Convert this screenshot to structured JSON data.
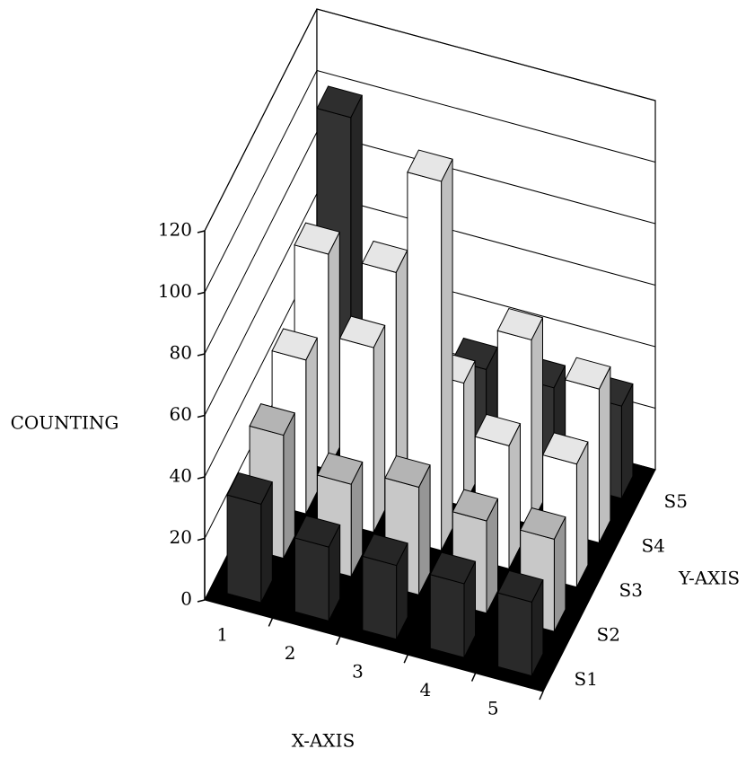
{
  "chart_data": {
    "type": "bar3d",
    "xlabel": "X-AXIS",
    "ylabel": "Y-AXIS",
    "zlabel": "COUNTING",
    "categories": [
      "1",
      "2",
      "3",
      "4",
      "5"
    ],
    "series": [
      {
        "name": "S1",
        "color": "#2a2a2a",
        "values": [
          32,
          24,
          24,
          24,
          24
        ]
      },
      {
        "name": "S2",
        "color": "#c8c8c8",
        "values": [
          40,
          30,
          35,
          30,
          30
        ]
      },
      {
        "name": "S3",
        "color": "#ffffff",
        "values": [
          50,
          60,
          120,
          40,
          40
        ]
      },
      {
        "name": "S4",
        "color": "#ffffff",
        "values": [
          70,
          70,
          40,
          60,
          50
        ]
      },
      {
        "name": "S5",
        "color": "#333333",
        "values": [
          100,
          50,
          30,
          30,
          30
        ]
      }
    ],
    "ylim": [
      0,
      120
    ],
    "yticks": [
      0,
      20,
      40,
      60,
      80,
      100,
      120
    ],
    "grid": true
  }
}
